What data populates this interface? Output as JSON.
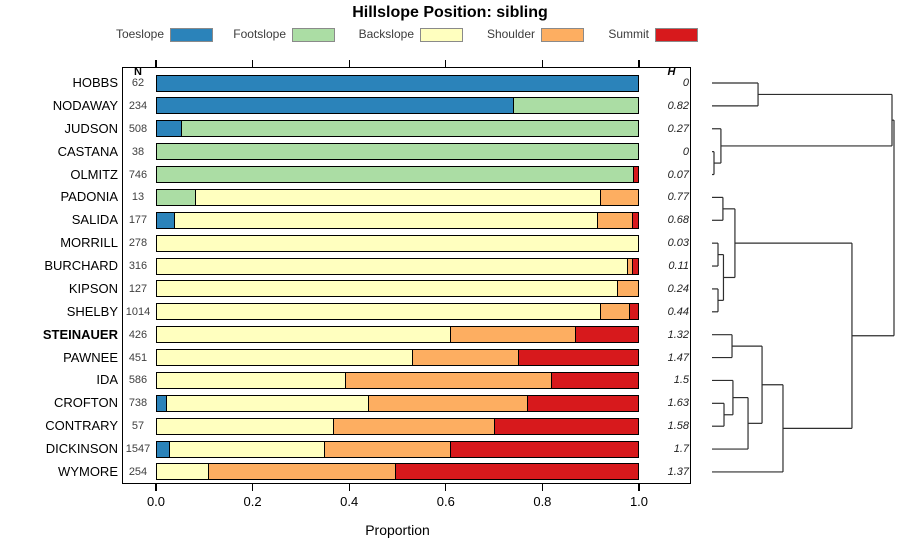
{
  "title": "Hillslope Position: sibling",
  "columns": {
    "n_header": "N",
    "h_header": "H"
  },
  "axis": {
    "label": "Proportion",
    "tick_labels": [
      "0.0",
      "0.2",
      "0.4",
      "0.6",
      "0.8",
      "1.0"
    ],
    "tick_values": [
      0,
      0.2,
      0.4,
      0.6,
      0.8,
      1.0
    ]
  },
  "chart_data": {
    "type": "stacked-bar",
    "orientation": "horizontal",
    "title": "Hillslope Position: sibling",
    "xlabel": "Proportion",
    "xlim": [
      0,
      1
    ],
    "legend": [
      {
        "label": "Toeslope",
        "color": "#2B83BA"
      },
      {
        "label": "Footslope",
        "color": "#ABDDA4"
      },
      {
        "label": "Backslope",
        "color": "#FFFFBF"
      },
      {
        "label": "Shoulder",
        "color": "#FDAE61"
      },
      {
        "label": "Summit",
        "color": "#D7191C"
      }
    ],
    "series": [
      {
        "name": "HOBBS",
        "n": "62",
        "h": "0",
        "bold": false,
        "values": [
          1,
          0,
          0,
          0,
          0
        ]
      },
      {
        "name": "NODAWAY",
        "n": "234",
        "h": "0.82",
        "bold": false,
        "values": [
          0.74,
          0.26,
          0,
          0,
          0
        ]
      },
      {
        "name": "JUDSON",
        "n": "508",
        "h": "0.27",
        "bold": false,
        "values": [
          0.05,
          0.95,
          0,
          0,
          0
        ]
      },
      {
        "name": "CASTANA",
        "n": "38",
        "h": "0",
        "bold": false,
        "values": [
          0,
          1,
          0,
          0,
          0
        ]
      },
      {
        "name": "OLMITZ",
        "n": "746",
        "h": "0.07",
        "bold": false,
        "values": [
          0,
          0.99,
          0,
          0,
          0.01
        ]
      },
      {
        "name": "PADONIA",
        "n": "13",
        "h": "0.77",
        "bold": false,
        "values": [
          0,
          0.08,
          0.84,
          0.08,
          0
        ]
      },
      {
        "name": "SALIDA",
        "n": "177",
        "h": "0.68",
        "bold": false,
        "values": [
          0.035,
          0,
          0.88,
          0.073,
          0.012
        ]
      },
      {
        "name": "MORRILL",
        "n": "278",
        "h": "0.03",
        "bold": false,
        "values": [
          0,
          0,
          1,
          0,
          0
        ]
      },
      {
        "name": "BURCHARD",
        "n": "316",
        "h": "0.11",
        "bold": false,
        "values": [
          0,
          0,
          0.977,
          0.011,
          0.012
        ]
      },
      {
        "name": "KIPSON",
        "n": "127",
        "h": "0.24",
        "bold": false,
        "values": [
          0,
          0,
          0.956,
          0.044,
          0
        ]
      },
      {
        "name": "SHELBY",
        "n": "1014",
        "h": "0.44",
        "bold": false,
        "values": [
          0,
          0,
          0.92,
          0.061,
          0.019
        ]
      },
      {
        "name": "STEINAUER",
        "n": "426",
        "h": "1.32",
        "bold": true,
        "values": [
          0,
          0,
          0.61,
          0.26,
          0.13
        ]
      },
      {
        "name": "PAWNEE",
        "n": "451",
        "h": "1.47",
        "bold": false,
        "values": [
          0,
          0,
          0.53,
          0.22,
          0.25
        ]
      },
      {
        "name": "IDA",
        "n": "586",
        "h": "1.5",
        "bold": false,
        "values": [
          0,
          0,
          0.39,
          0.43,
          0.18
        ]
      },
      {
        "name": "CROFTON",
        "n": "738",
        "h": "1.63",
        "bold": false,
        "values": [
          0.019,
          0,
          0.42,
          0.33,
          0.231
        ]
      },
      {
        "name": "CONTRARY",
        "n": "57",
        "h": "1.58",
        "bold": false,
        "values": [
          0,
          0,
          0.366,
          0.334,
          0.3
        ]
      },
      {
        "name": "DICKINSON",
        "n": "1547",
        "h": "1.7",
        "bold": false,
        "values": [
          0.025,
          0,
          0.323,
          0.261,
          0.391
        ]
      },
      {
        "name": "WYMORE",
        "n": "254",
        "h": "1.37",
        "bold": false,
        "values": [
          0,
          0,
          0.105,
          0.39,
          0.505
        ]
      }
    ],
    "dendrogram": {
      "h": 1.0,
      "children": [
        {
          "h": 0.989,
          "children": [
            {
              "h": 0.253,
              "children": [
                {
                  "leaf": "HOBBS"
                },
                {
                  "leaf": "NODAWAY"
                }
              ]
            },
            {
              "h": 0.049,
              "children": [
                {
                  "leaf": "JUDSON"
                },
                {
                  "h": 0.011,
                  "children": [
                    {
                      "leaf": "CASTANA"
                    },
                    {
                      "leaf": "OLMITZ"
                    }
                  ]
                }
              ]
            }
          ]
        },
        {
          "h": 0.769,
          "children": [
            {
              "h": 0.126,
              "children": [
                {
                  "h": 0.06,
                  "children": [
                    {
                      "leaf": "PADONIA"
                    },
                    {
                      "leaf": "SALIDA"
                    }
                  ]
                },
                {
                  "h": 0.063,
                  "children": [
                    {
                      "h": 0.033,
                      "children": [
                        {
                          "leaf": "MORRILL"
                        },
                        {
                          "leaf": "BURCHARD"
                        }
                      ]
                    },
                    {
                      "h": 0.033,
                      "children": [
                        {
                          "leaf": "KIPSON"
                        },
                        {
                          "leaf": "SHELBY"
                        }
                      ]
                    }
                  ]
                }
              ]
            },
            {
              "h": 0.39,
              "children": [
                {
                  "h": 0.275,
                  "children": [
                    {
                      "h": 0.11,
                      "children": [
                        {
                          "leaf": "STEINAUER"
                        },
                        {
                          "leaf": "PAWNEE"
                        }
                      ]
                    },
                    {
                      "h": 0.198,
                      "children": [
                        {
                          "h": 0.115,
                          "children": [
                            {
                              "leaf": "IDA"
                            },
                            {
                              "h": 0.066,
                              "children": [
                                {
                                  "leaf": "CROFTON"
                                },
                                {
                                  "leaf": "CONTRARY"
                                }
                              ]
                            }
                          ]
                        },
                        {
                          "leaf": "DICKINSON"
                        }
                      ]
                    }
                  ]
                },
                {
                  "leaf": "WYMORE"
                }
              ]
            }
          ]
        }
      ]
    }
  }
}
